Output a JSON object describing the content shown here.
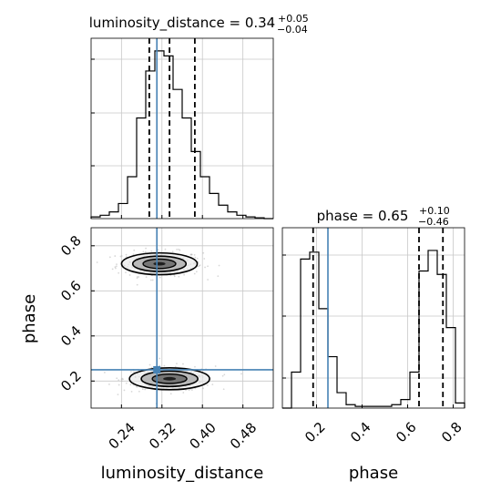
{
  "chart_data": {
    "type": "corner",
    "parameters": [
      "luminosity_distance",
      "phase"
    ],
    "axis_labels": {
      "x_left": "luminosity_distance",
      "x_right": "phase",
      "y": "phase"
    },
    "truths": {
      "luminosity_distance": 0.31,
      "phase": 0.25
    },
    "titles": {
      "luminosity_distance": {
        "name": "luminosity_distance",
        "value": "0.34",
        "plus": "+0.05",
        "minus": "−0.04"
      },
      "phase": {
        "name": "phase",
        "value": "0.65",
        "plus": "+0.10",
        "minus": "−0.46"
      }
    },
    "quantiles": {
      "luminosity_distance": [
        0.295,
        0.335,
        0.385
      ],
      "phase": [
        0.185,
        0.65,
        0.755
      ]
    },
    "xlim_ld": [
      0.18,
      0.54
    ],
    "xlim_phase": [
      0.05,
      0.85
    ],
    "ylim_phase": [
      0.08,
      0.88
    ],
    "ticks_ld": [
      {
        "v": 0.24,
        "label": "0.24"
      },
      {
        "v": 0.32,
        "label": "0.32"
      },
      {
        "v": 0.4,
        "label": "0.40"
      },
      {
        "v": 0.48,
        "label": "0.48"
      }
    ],
    "ticks_phase": [
      {
        "v": 0.2,
        "label": "0.2"
      },
      {
        "v": 0.4,
        "label": "0.4"
      },
      {
        "v": 0.6,
        "label": "0.6"
      },
      {
        "v": 0.8,
        "label": "0.8"
      }
    ],
    "hist_ld": {
      "edges": [
        0.18,
        0.198,
        0.216,
        0.234,
        0.252,
        0.27,
        0.288,
        0.306,
        0.324,
        0.342,
        0.36,
        0.378,
        0.396,
        0.414,
        0.432,
        0.45,
        0.468,
        0.486,
        0.504,
        0.522,
        0.54
      ],
      "heights": [
        0.01,
        0.02,
        0.04,
        0.09,
        0.25,
        0.6,
        0.88,
        1.0,
        0.97,
        0.77,
        0.6,
        0.4,
        0.25,
        0.15,
        0.08,
        0.04,
        0.02,
        0.01,
        0.005,
        0.0
      ]
    },
    "hist_phase": {
      "edges": [
        0.05,
        0.09,
        0.13,
        0.17,
        0.21,
        0.25,
        0.29,
        0.33,
        0.37,
        0.41,
        0.45,
        0.49,
        0.53,
        0.57,
        0.61,
        0.65,
        0.69,
        0.73,
        0.77,
        0.81,
        0.85
      ],
      "heights": [
        0.0,
        0.21,
        0.87,
        0.91,
        0.58,
        0.3,
        0.09,
        0.02,
        0.01,
        0.01,
        0.01,
        0.01,
        0.02,
        0.05,
        0.21,
        0.8,
        0.92,
        0.78,
        0.47,
        0.03
      ]
    },
    "modes": [
      {
        "name": "upper",
        "center": [
          0.315,
          0.72
        ],
        "sigma": [
          0.034,
          0.022
        ]
      },
      {
        "name": "lower",
        "center": [
          0.335,
          0.21
        ],
        "sigma": [
          0.036,
          0.022
        ]
      }
    ],
    "colors": {
      "truth": "#4682b4",
      "hist": "#000000",
      "grid": "#c8c8c8",
      "contour_fill": "#9a9a9a",
      "contour_core": "#111111"
    },
    "grid": true
  }
}
